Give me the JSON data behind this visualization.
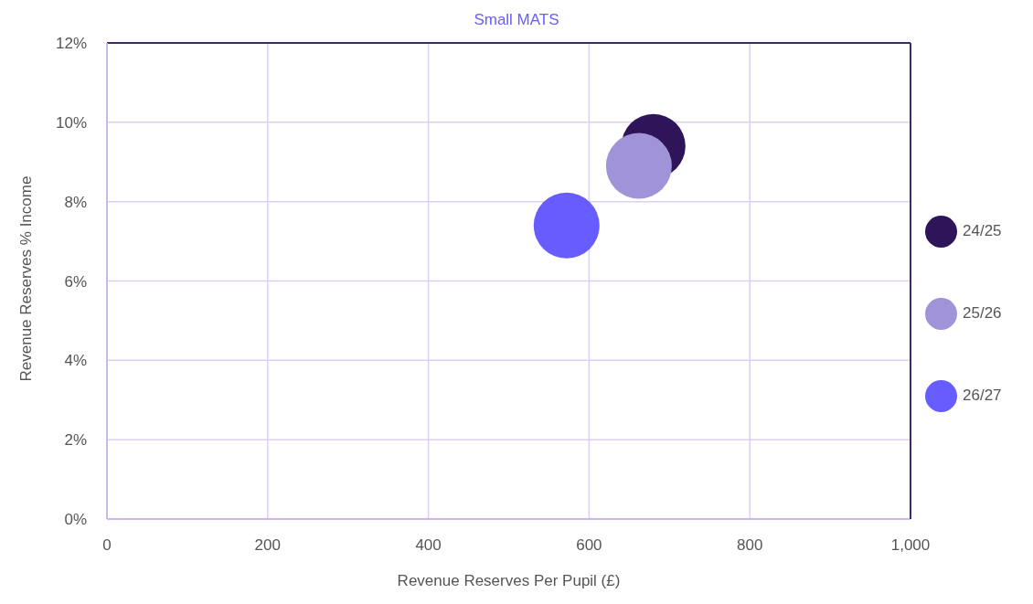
{
  "chart_data": {
    "type": "bubble",
    "title": "Small MATS",
    "xlabel": "Revenue Reserves Per Pupil (£)",
    "ylabel": "Revenue Reserves % Income",
    "xlim": [
      0,
      1000
    ],
    "xticks": [
      0,
      200,
      400,
      600,
      800,
      {
        "value": 1000,
        "label": "1,000"
      }
    ],
    "ylim": [
      0,
      12
    ],
    "yticks": [
      {
        "value": 0,
        "label": "0%"
      },
      {
        "value": 2,
        "label": "2%"
      },
      {
        "value": 4,
        "label": "4%"
      },
      {
        "value": 6,
        "label": "6%"
      },
      {
        "value": 8,
        "label": "8%"
      },
      {
        "value": 10,
        "label": "10%"
      },
      {
        "value": 12,
        "label": "12%"
      }
    ],
    "grid": true,
    "legend": "right",
    "series": [
      {
        "name": "24/25",
        "color": "#2e1459",
        "x": [
          680
        ],
        "values": [
          9.4
        ],
        "sizes": [
          0.95
        ]
      },
      {
        "name": "25/26",
        "color": "#a093d8",
        "x": [
          662
        ],
        "values": [
          8.9
        ],
        "sizes": [
          1
        ]
      },
      {
        "name": "26/27",
        "color": "#675cff",
        "x": [
          572
        ],
        "values": [
          7.4
        ],
        "sizes": [
          1
        ]
      }
    ]
  }
}
